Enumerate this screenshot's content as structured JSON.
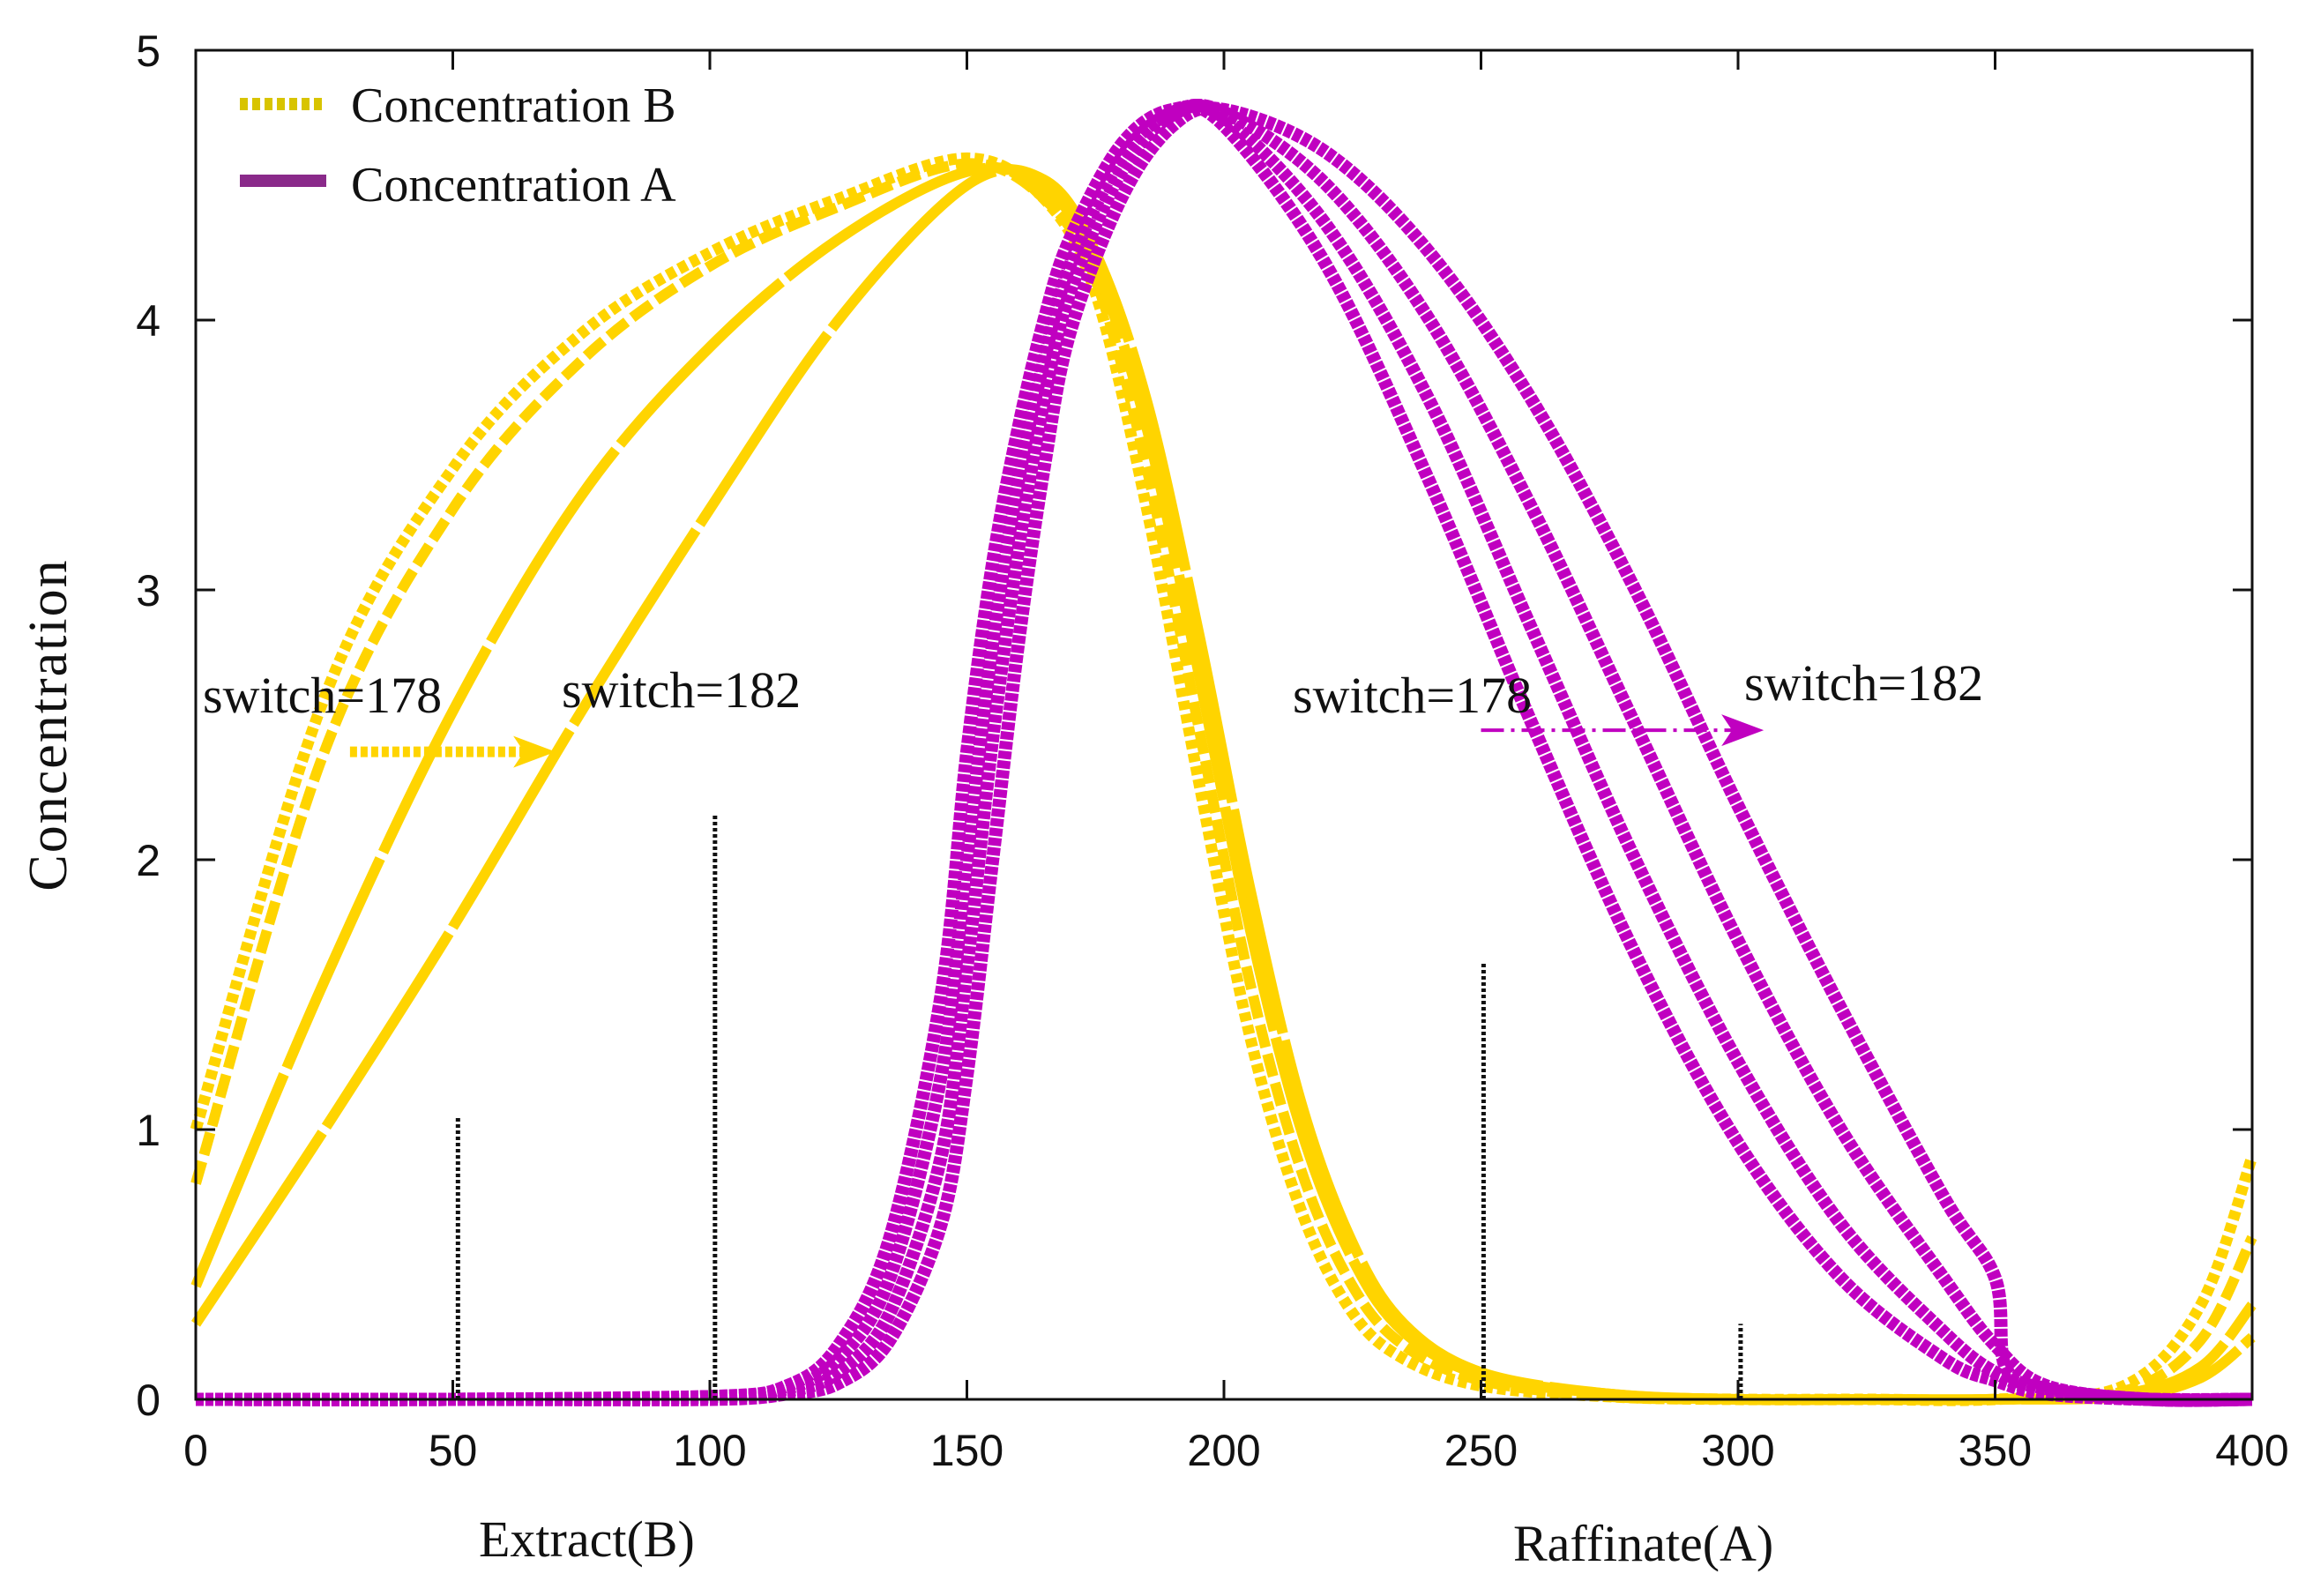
{
  "chart_data": {
    "type": "line",
    "title": "",
    "ylabel": "Concentration",
    "xlabels_sub": [
      "Extract(B)",
      "Raffinate(A)"
    ],
    "xlim": [
      0,
      400
    ],
    "ylim": [
      0,
      5
    ],
    "xticks": [
      "0",
      "50",
      "100",
      "150",
      "200",
      "250",
      "300",
      "350",
      "400"
    ],
    "yticks": [
      "0",
      "1",
      "2",
      "3",
      "4",
      "5"
    ],
    "grid": false,
    "legend_position": "top-left",
    "legend": [
      {
        "label": "Concentration B",
        "style": "dotted",
        "color": "#f0d000"
      },
      {
        "label": "Concentration A",
        "style": "solid",
        "color": "#8a2a8a"
      }
    ],
    "colors": {
      "B": "#ffd400",
      "A": "#c000c0",
      "A_legend": "#8a2a8a",
      "B_legend": "#d8c400"
    },
    "annotations": [
      {
        "text": "switch=178",
        "side": "extract"
      },
      {
        "text": "switch=182",
        "side": "extract"
      },
      {
        "text": "switch=178",
        "side": "raffinate"
      },
      {
        "text": "switch=182",
        "side": "raffinate"
      }
    ],
    "arrows": [
      {
        "from": [
          30,
          2.4
        ],
        "to": [
          70,
          2.4
        ],
        "color": "#ffd400"
      },
      {
        "from": [
          250,
          2.48
        ],
        "to": [
          305,
          2.48
        ],
        "color": "#c000c0"
      }
    ],
    "markers": [
      {
        "x": 51,
        "y0": 0,
        "y1": 1.05
      },
      {
        "x": 101,
        "y0": 0,
        "y1": 2.17
      },
      {
        "x": 250.5,
        "y0": 0,
        "y1": 1.62
      },
      {
        "x": 300.5,
        "y0": 0,
        "y1": 0.28
      }
    ],
    "series": [
      {
        "name": "Concentration B (switch=178)",
        "group": "B",
        "style": "dotted",
        "x": [
          0,
          25,
          50,
          75,
          100,
          125,
          150,
          165,
          175,
          185,
          195,
          205,
          215,
          225,
          235,
          250,
          275,
          300,
          325,
          350,
          375,
          390,
          400
        ],
        "y": [
          1.0,
          2.6,
          3.45,
          3.95,
          4.25,
          4.45,
          4.6,
          4.45,
          4.1,
          3.3,
          2.3,
          1.35,
          0.7,
          0.32,
          0.15,
          0.05,
          0.01,
          0.0,
          0.0,
          0.0,
          0.05,
          0.35,
          0.9
        ]
      },
      {
        "name": "Concentration B (switch=180)",
        "group": "B",
        "style": "dashed",
        "x": [
          0,
          25,
          50,
          75,
          100,
          125,
          150,
          165,
          175,
          185,
          195,
          205,
          215,
          225,
          235,
          250,
          275,
          300,
          325,
          350,
          375,
          390,
          400
        ],
        "y": [
          0.8,
          2.4,
          3.3,
          3.85,
          4.2,
          4.42,
          4.58,
          4.45,
          4.15,
          3.45,
          2.5,
          1.55,
          0.85,
          0.42,
          0.2,
          0.07,
          0.01,
          0.0,
          0.0,
          0.0,
          0.03,
          0.22,
          0.6
        ]
      },
      {
        "name": "Concentration B (switch=182a)",
        "group": "B",
        "style": "solid",
        "x": [
          0,
          25,
          50,
          75,
          100,
          125,
          150,
          165,
          175,
          185,
          195,
          205,
          215,
          225,
          235,
          250,
          275,
          300,
          325,
          350,
          375,
          390,
          400
        ],
        "y": [
          0.42,
          1.55,
          2.55,
          3.35,
          3.9,
          4.3,
          4.55,
          4.5,
          4.2,
          3.6,
          2.7,
          1.75,
          1.0,
          0.52,
          0.25,
          0.09,
          0.02,
          0.0,
          0.0,
          0.0,
          0.02,
          0.12,
          0.35
        ]
      },
      {
        "name": "Concentration B (switch=182b)",
        "group": "B",
        "style": "solid",
        "x": [
          0,
          25,
          50,
          75,
          100,
          125,
          150,
          165,
          175,
          185,
          195,
          205,
          215,
          225,
          235,
          250,
          275,
          300,
          325,
          350,
          375,
          390,
          400
        ],
        "y": [
          0.28,
          1.0,
          1.75,
          2.55,
          3.3,
          4.0,
          4.5,
          4.52,
          4.25,
          3.7,
          2.85,
          1.9,
          1.1,
          0.58,
          0.28,
          0.1,
          0.02,
          0.0,
          0.0,
          0.0,
          0.01,
          0.08,
          0.23
        ]
      },
      {
        "name": "Concentration A (switch=178)",
        "group": "A",
        "style": "solid",
        "x": [
          0,
          50,
          100,
          115,
          125,
          135,
          145,
          150,
          155,
          160,
          165,
          170,
          180,
          190,
          200,
          220,
          240,
          260,
          280,
          300,
          320,
          340,
          350,
          360,
          380,
          400
        ],
        "y": [
          0.0,
          0.0,
          0.01,
          0.05,
          0.2,
          0.6,
          1.5,
          2.4,
          3.1,
          3.6,
          4.0,
          4.3,
          4.65,
          4.78,
          4.72,
          4.2,
          3.4,
          2.5,
          1.65,
          0.95,
          0.45,
          0.15,
          0.07,
          0.02,
          0.0,
          0.0
        ]
      },
      {
        "name": "Concentration A (switch=180a)",
        "group": "A",
        "style": "solid",
        "x": [
          0,
          50,
          100,
          115,
          125,
          135,
          145,
          150,
          155,
          160,
          165,
          170,
          180,
          190,
          200,
          220,
          240,
          260,
          280,
          300,
          320,
          340,
          350,
          360,
          380,
          400
        ],
        "y": [
          0.0,
          0.0,
          0.01,
          0.04,
          0.15,
          0.45,
          1.2,
          2.0,
          2.8,
          3.4,
          3.85,
          4.2,
          4.6,
          4.77,
          4.75,
          4.35,
          3.7,
          2.85,
          2.0,
          1.25,
          0.65,
          0.25,
          0.1,
          0.03,
          0.0,
          0.0
        ]
      },
      {
        "name": "Concentration A (switch=180b)",
        "group": "A",
        "style": "solid",
        "x": [
          0,
          50,
          100,
          115,
          125,
          135,
          145,
          150,
          155,
          160,
          165,
          170,
          180,
          190,
          200,
          220,
          240,
          260,
          280,
          300,
          320,
          340,
          350,
          360,
          380,
          400
        ],
        "y": [
          0.0,
          0.0,
          0.01,
          0.03,
          0.1,
          0.32,
          0.9,
          1.6,
          2.45,
          3.15,
          3.7,
          4.1,
          4.55,
          4.76,
          4.77,
          4.5,
          4.0,
          3.3,
          2.5,
          1.7,
          1.0,
          0.45,
          0.2,
          0.05,
          0.0,
          0.0
        ]
      },
      {
        "name": "Concentration A (switch=182)",
        "group": "A",
        "style": "solid",
        "x": [
          0,
          50,
          100,
          115,
          125,
          135,
          145,
          150,
          155,
          160,
          165,
          170,
          180,
          190,
          200,
          220,
          240,
          260,
          280,
          300,
          320,
          340,
          350,
          352,
          360,
          380,
          400
        ],
        "y": [
          0.0,
          0.0,
          0.0,
          0.02,
          0.06,
          0.22,
          0.65,
          1.2,
          2.0,
          2.8,
          3.45,
          3.95,
          4.45,
          4.72,
          4.78,
          4.62,
          4.25,
          3.7,
          3.0,
          2.2,
          1.45,
          0.75,
          0.45,
          0.12,
          0.04,
          0.0,
          0.0
        ]
      }
    ]
  }
}
